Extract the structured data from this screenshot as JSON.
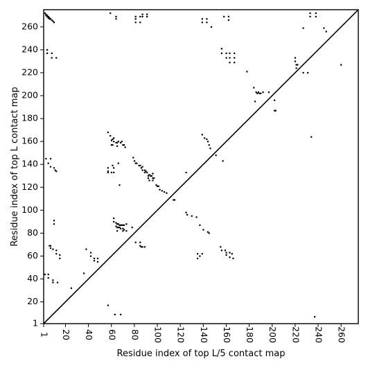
{
  "chart_data": {
    "type": "scatter",
    "xlabel": "Residue index of top L/5 contact map",
    "ylabel": "Residue index of top L contact map",
    "xlim": [
      1,
      275
    ],
    "ylim": [
      1,
      275
    ],
    "x_ticks": [
      1,
      20,
      40,
      60,
      80,
      100,
      120,
      140,
      160,
      180,
      200,
      220,
      240,
      260
    ],
    "y_ticks": [
      1,
      20,
      40,
      60,
      80,
      100,
      120,
      140,
      160,
      180,
      200,
      220,
      240,
      260
    ],
    "grid": false,
    "diagonal_line": true,
    "marker_color": "#000000",
    "series": [
      {
        "points": [
          [
            2,
            272
          ],
          [
            3,
            271
          ],
          [
            3,
            270
          ],
          [
            4,
            270
          ],
          [
            4,
            269
          ],
          [
            5,
            269
          ],
          [
            5,
            268
          ],
          [
            6,
            268
          ],
          [
            6,
            267
          ],
          [
            7,
            267
          ],
          [
            8,
            266
          ],
          [
            9,
            265
          ],
          [
            10,
            264
          ],
          [
            59,
            272
          ],
          [
            64,
            269
          ],
          [
            64,
            267
          ],
          [
            81,
            269
          ],
          [
            81,
            267
          ],
          [
            85,
            269
          ],
          [
            87,
            271
          ],
          [
            87,
            269
          ],
          [
            91,
            271
          ],
          [
            91,
            269
          ],
          [
            81,
            264
          ],
          [
            85,
            264
          ],
          [
            139,
            267
          ],
          [
            143,
            267
          ],
          [
            139,
            264
          ],
          [
            143,
            264
          ],
          [
            147,
            260
          ],
          [
            158,
            269
          ],
          [
            162,
            269
          ],
          [
            162,
            266
          ],
          [
            233,
            272
          ],
          [
            233,
            269
          ],
          [
            238,
            272
          ],
          [
            238,
            269
          ],
          [
            227,
            259
          ],
          [
            245,
            259
          ],
          [
            247,
            256
          ],
          [
            4,
            240
          ],
          [
            4,
            237
          ],
          [
            8,
            237
          ],
          [
            8,
            233
          ],
          [
            12,
            233
          ],
          [
            156,
            241
          ],
          [
            156,
            237
          ],
          [
            160,
            237
          ],
          [
            163,
            237
          ],
          [
            163,
            233
          ],
          [
            167,
            237
          ],
          [
            167,
            233
          ],
          [
            160,
            233
          ],
          [
            163,
            229
          ],
          [
            167,
            229
          ],
          [
            178,
            221
          ],
          [
            220,
            233
          ],
          [
            220,
            230
          ],
          [
            221,
            227
          ],
          [
            222,
            227
          ],
          [
            221,
            224
          ],
          [
            227,
            220
          ],
          [
            231,
            220
          ],
          [
            260,
            227
          ],
          [
            184,
            207
          ],
          [
            186,
            203
          ],
          [
            187,
            202
          ],
          [
            188,
            203
          ],
          [
            189,
            202
          ],
          [
            190,
            202
          ],
          [
            192,
            203
          ],
          [
            197,
            203
          ],
          [
            185,
            195
          ],
          [
            202,
            196
          ],
          [
            202,
            187
          ],
          [
            203,
            187
          ],
          [
            57,
            168
          ],
          [
            59,
            165
          ],
          [
            60,
            161
          ],
          [
            61,
            162
          ],
          [
            62,
            163
          ],
          [
            62,
            160
          ],
          [
            64,
            159
          ],
          [
            65,
            159
          ],
          [
            66,
            160
          ],
          [
            68,
            159
          ],
          [
            69,
            160
          ],
          [
            70,
            157
          ],
          [
            71,
            157
          ],
          [
            72,
            155
          ],
          [
            60,
            157
          ],
          [
            61,
            157
          ],
          [
            65,
            156
          ],
          [
            139,
            166
          ],
          [
            141,
            163
          ],
          [
            143,
            162
          ],
          [
            144,
            160
          ],
          [
            145,
            157
          ],
          [
            146,
            154
          ],
          [
            151,
            148
          ],
          [
            157,
            143
          ],
          [
            234,
            164
          ],
          [
            3,
            145
          ],
          [
            7,
            145
          ],
          [
            5,
            141
          ],
          [
            7,
            138
          ],
          [
            10,
            137
          ],
          [
            11,
            135
          ],
          [
            12,
            134
          ],
          [
            57,
            137
          ],
          [
            61,
            139
          ],
          [
            62,
            137
          ],
          [
            57,
            134
          ],
          [
            57,
            133
          ],
          [
            60,
            133
          ],
          [
            62,
            133
          ],
          [
            66,
            141
          ],
          [
            67,
            122
          ],
          [
            79,
            146
          ],
          [
            80,
            143
          ],
          [
            81,
            141
          ],
          [
            82,
            141
          ],
          [
            84,
            139
          ],
          [
            85,
            139
          ],
          [
            86,
            137
          ],
          [
            87,
            138
          ],
          [
            87,
            135
          ],
          [
            89,
            135
          ],
          [
            89,
            133
          ],
          [
            90,
            134
          ],
          [
            91,
            133
          ],
          [
            92,
            130
          ],
          [
            93,
            131
          ],
          [
            94,
            130
          ],
          [
            95,
            130
          ],
          [
            96,
            132
          ],
          [
            96,
            128
          ],
          [
            97,
            128
          ],
          [
            99,
            122
          ],
          [
            100,
            121
          ],
          [
            101,
            121
          ],
          [
            92,
            128
          ],
          [
            93,
            126
          ],
          [
            96,
            126
          ],
          [
            102,
            118
          ],
          [
            104,
            117
          ],
          [
            106,
            116
          ],
          [
            108,
            115
          ],
          [
            114,
            109
          ],
          [
            115,
            109
          ],
          [
            125,
            133
          ],
          [
            125,
            98
          ],
          [
            126,
            96
          ],
          [
            130,
            95
          ],
          [
            134,
            94
          ],
          [
            137,
            87
          ],
          [
            140,
            83
          ],
          [
            144,
            81
          ],
          [
            145,
            80
          ],
          [
            62,
            93
          ],
          [
            62,
            90
          ],
          [
            64,
            89
          ],
          [
            65,
            88
          ],
          [
            66,
            88
          ],
          [
            67,
            87
          ],
          [
            68,
            87
          ],
          [
            69,
            87
          ],
          [
            70,
            87
          ],
          [
            71,
            87
          ],
          [
            64,
            86
          ],
          [
            65,
            85
          ],
          [
            66,
            85
          ],
          [
            67,
            85
          ],
          [
            68,
            84
          ],
          [
            70,
            84
          ],
          [
            71,
            83
          ],
          [
            70,
            82
          ],
          [
            65,
            82
          ],
          [
            73,
            82
          ],
          [
            73,
            88
          ],
          [
            78,
            85
          ],
          [
            81,
            72
          ],
          [
            85,
            72
          ],
          [
            85,
            69
          ],
          [
            87,
            68
          ],
          [
            89,
            68
          ],
          [
            86,
            68
          ],
          [
            6,
            69
          ],
          [
            7,
            69
          ],
          [
            7,
            67
          ],
          [
            9,
            66
          ],
          [
            12,
            65
          ],
          [
            12,
            62
          ],
          [
            15,
            61
          ],
          [
            15,
            58
          ],
          [
            38,
            66
          ],
          [
            42,
            63
          ],
          [
            42,
            60
          ],
          [
            45,
            58
          ],
          [
            45,
            56
          ],
          [
            48,
            58
          ],
          [
            48,
            55
          ],
          [
            36,
            45
          ],
          [
            25,
            32
          ],
          [
            10,
            91
          ],
          [
            10,
            88
          ],
          [
            2,
            44
          ],
          [
            5,
            44
          ],
          [
            5,
            41
          ],
          [
            9,
            39
          ],
          [
            9,
            37
          ],
          [
            13,
            37
          ],
          [
            57,
            17
          ],
          [
            63,
            9
          ],
          [
            68,
            9
          ],
          [
            237,
            7
          ],
          [
            135,
            62
          ],
          [
            137,
            60
          ],
          [
            139,
            62
          ],
          [
            135,
            58
          ],
          [
            155,
            68
          ],
          [
            156,
            65
          ],
          [
            159,
            65
          ],
          [
            160,
            63
          ],
          [
            160,
            61
          ],
          [
            163,
            63
          ],
          [
            163,
            59
          ],
          [
            165,
            62
          ],
          [
            166,
            58
          ]
        ]
      }
    ]
  }
}
